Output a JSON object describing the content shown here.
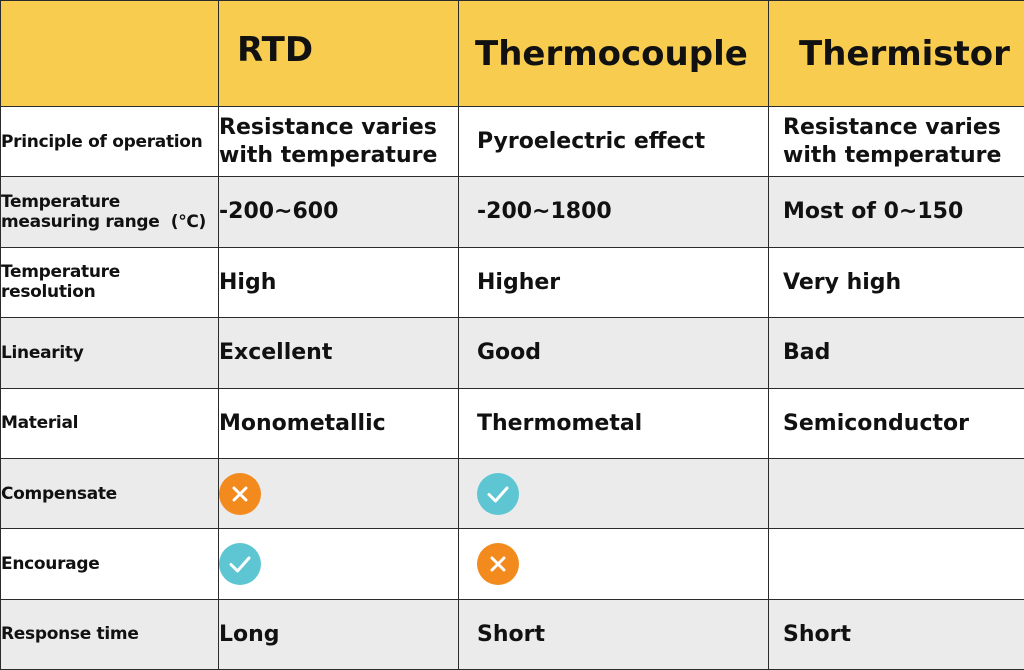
{
  "header": {
    "col1": "RTD",
    "col2": "Thermocouple",
    "col3": "Thermistor"
  },
  "rows": [
    {
      "label": "Principle of operation",
      "rtd": "Resistance varies with temperature",
      "thermocouple": "Pyroelectric effect",
      "thermistor": "Resistance varies with temperature"
    },
    {
      "label": "Temperature measuring range  (℃)",
      "rtd": "-200~600",
      "thermocouple": "-200~1800",
      "thermistor": "Most of 0~150"
    },
    {
      "label": "Temperature resolution",
      "rtd": "High",
      "thermocouple": "Higher",
      "thermistor": "Very high"
    },
    {
      "label": "Linearity",
      "rtd": "Excellent",
      "thermocouple": "Good",
      "thermistor": "Bad"
    },
    {
      "label": "Material",
      "rtd": "Monometallic",
      "thermocouple": "Thermometal",
      "thermistor": "Semiconductor"
    },
    {
      "label": "Compensate",
      "rtd": "cross-icon",
      "thermocouple": "check-icon",
      "thermistor": ""
    },
    {
      "label": "Encourage",
      "rtd": "check-icon",
      "thermocouple": "cross-icon",
      "thermistor": ""
    },
    {
      "label": "Response time",
      "rtd": "Long",
      "thermocouple": "Short",
      "thermistor": "Short"
    }
  ],
  "colors": {
    "header_bg": "#f8cc4f",
    "alt_row_bg": "#ebebeb",
    "cross_icon": "#f28a1e",
    "check_icon": "#5ec6d3"
  }
}
